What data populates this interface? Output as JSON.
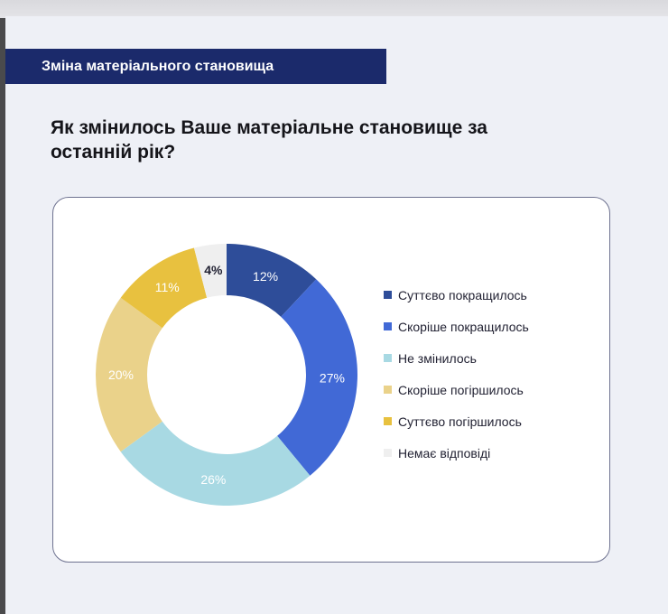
{
  "header": {
    "section_title": "Зміна матеріального становища",
    "question": "Як змінилось Ваше матеріальне становище за останній рік?"
  },
  "chart_data": {
    "type": "pie",
    "variant": "donut",
    "title": "",
    "legend_position": "right",
    "slices": [
      {
        "label": "Суттєво покращилось",
        "value": 12,
        "value_label": "12%",
        "color": "#2e4d99"
      },
      {
        "label": "Скоріше покращилось",
        "value": 27,
        "value_label": "27%",
        "color": "#4169d6"
      },
      {
        "label": "Не змінилось",
        "value": 26,
        "value_label": "26%",
        "color": "#a8d9e3"
      },
      {
        "label": "Скоріше погіршилось",
        "value": 20,
        "value_label": "20%",
        "color": "#ead28a"
      },
      {
        "label": "Суттєво погіршилось",
        "value": 11,
        "value_label": "11%",
        "color": "#e8c13f"
      },
      {
        "label": "Немає відповіді",
        "value": 4,
        "value_label": "4%",
        "color": "#efefef"
      }
    ]
  }
}
